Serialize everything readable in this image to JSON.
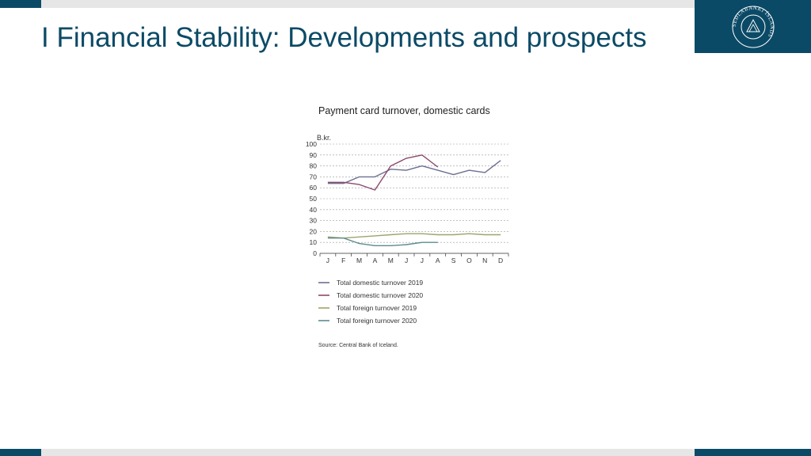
{
  "slide": {
    "title": "I Financial Stability: Developments and prospects",
    "logo_text": "SEÐLABANKI ÍSLANDS"
  },
  "colors": {
    "brand": "#0b4a66",
    "band": "#e6e6e6"
  },
  "chart_data": {
    "type": "line",
    "title": "Payment card turnover, domestic cards",
    "ylabel": "B.kr.",
    "ylim": [
      0,
      100
    ],
    "yticks": [
      0,
      10,
      20,
      30,
      40,
      50,
      60,
      70,
      80,
      90,
      100
    ],
    "categories": [
      "J",
      "F",
      "M",
      "A",
      "M",
      "J",
      "J",
      "A",
      "S",
      "O",
      "N",
      "D"
    ],
    "grid": true,
    "legend_position": "bottom",
    "series": [
      {
        "name": "Total domestic turnover 2019",
        "color": "#6b6f92",
        "values": [
          64,
          64,
          70,
          70,
          77,
          76,
          80,
          76,
          72,
          76,
          74,
          85
        ]
      },
      {
        "name": "Total domestic turnover 2020",
        "color": "#8a4a6a",
        "values": [
          65,
          65,
          63,
          58,
          80,
          87,
          90,
          79,
          null,
          null,
          null,
          null
        ]
      },
      {
        "name": "Total foreign turnover 2019",
        "color": "#9fa36a",
        "values": [
          15,
          14,
          15,
          16,
          17,
          18,
          18,
          17,
          17,
          18,
          17,
          17
        ]
      },
      {
        "name": "Total foreign turnover 2020",
        "color": "#5c8b8f",
        "values": [
          14,
          14,
          9,
          7,
          7,
          8,
          10,
          10,
          null,
          null,
          null,
          null
        ]
      }
    ],
    "source": "Source: Central Bank of Iceland."
  }
}
